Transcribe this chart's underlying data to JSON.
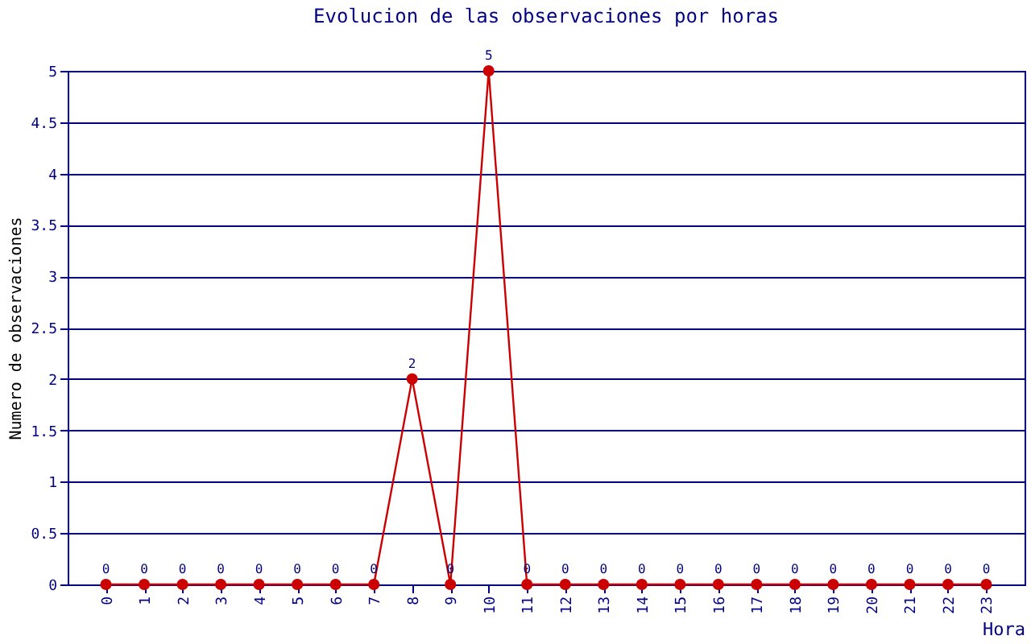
{
  "chart_data": {
    "type": "line",
    "title": "Evolucion de las observaciones por horas",
    "xlabel": "Hora",
    "ylabel": "Numero de observaciones",
    "categories": [
      "0",
      "1",
      "2",
      "3",
      "4",
      "5",
      "6",
      "7",
      "8",
      "9",
      "10",
      "11",
      "12",
      "13",
      "14",
      "15",
      "16",
      "17",
      "18",
      "19",
      "20",
      "21",
      "22",
      "23"
    ],
    "series": [
      {
        "color": "#cc0000",
        "values": [
          0,
          0,
          0,
          0,
          0,
          0,
          0,
          0,
          2,
          0,
          5,
          0,
          0,
          0,
          0,
          0,
          0,
          0,
          0,
          0,
          0,
          0,
          0,
          0
        ]
      }
    ],
    "ylim": [
      0,
      5
    ],
    "yticks": [
      0,
      0.5,
      1,
      1.5,
      2,
      2.5,
      3,
      3.5,
      4,
      4.5,
      5
    ],
    "grid": "y",
    "marker": "circle",
    "line_style": "solid",
    "data_labels": true
  }
}
